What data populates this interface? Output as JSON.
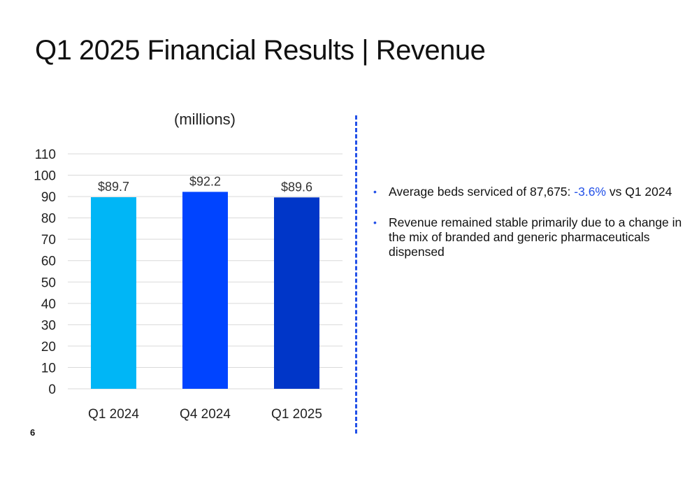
{
  "slide": {
    "title": "Q1 2025 Financial Results | Revenue",
    "page_number": "6"
  },
  "bullets": [
    {
      "prefix": "Average beds serviced of 87,675: ",
      "highlight": "-3.6%",
      "suffix": " vs Q1 2024"
    },
    {
      "text": "Revenue remained stable primarily due to a change in the mix of branded and generic pharmaceuticals dispensed"
    }
  ],
  "colors": {
    "accent": "#2351e8",
    "gridline": "#d9d9d9"
  },
  "chart_data": {
    "type": "bar",
    "title": "(millions)",
    "categories": [
      "Q1 2024",
      "Q4 2024",
      "Q1 2025"
    ],
    "values": [
      89.7,
      92.2,
      89.6
    ],
    "data_labels": [
      "$89.7",
      "$92.2",
      "$89.6"
    ],
    "bar_colors": [
      "#00b6f6",
      "#0044ff",
      "#0036c8"
    ],
    "yticks": [
      0,
      10,
      20,
      30,
      40,
      50,
      60,
      70,
      80,
      90,
      100,
      110
    ],
    "ylim": [
      0,
      110
    ],
    "grid": true,
    "legend": "none"
  }
}
